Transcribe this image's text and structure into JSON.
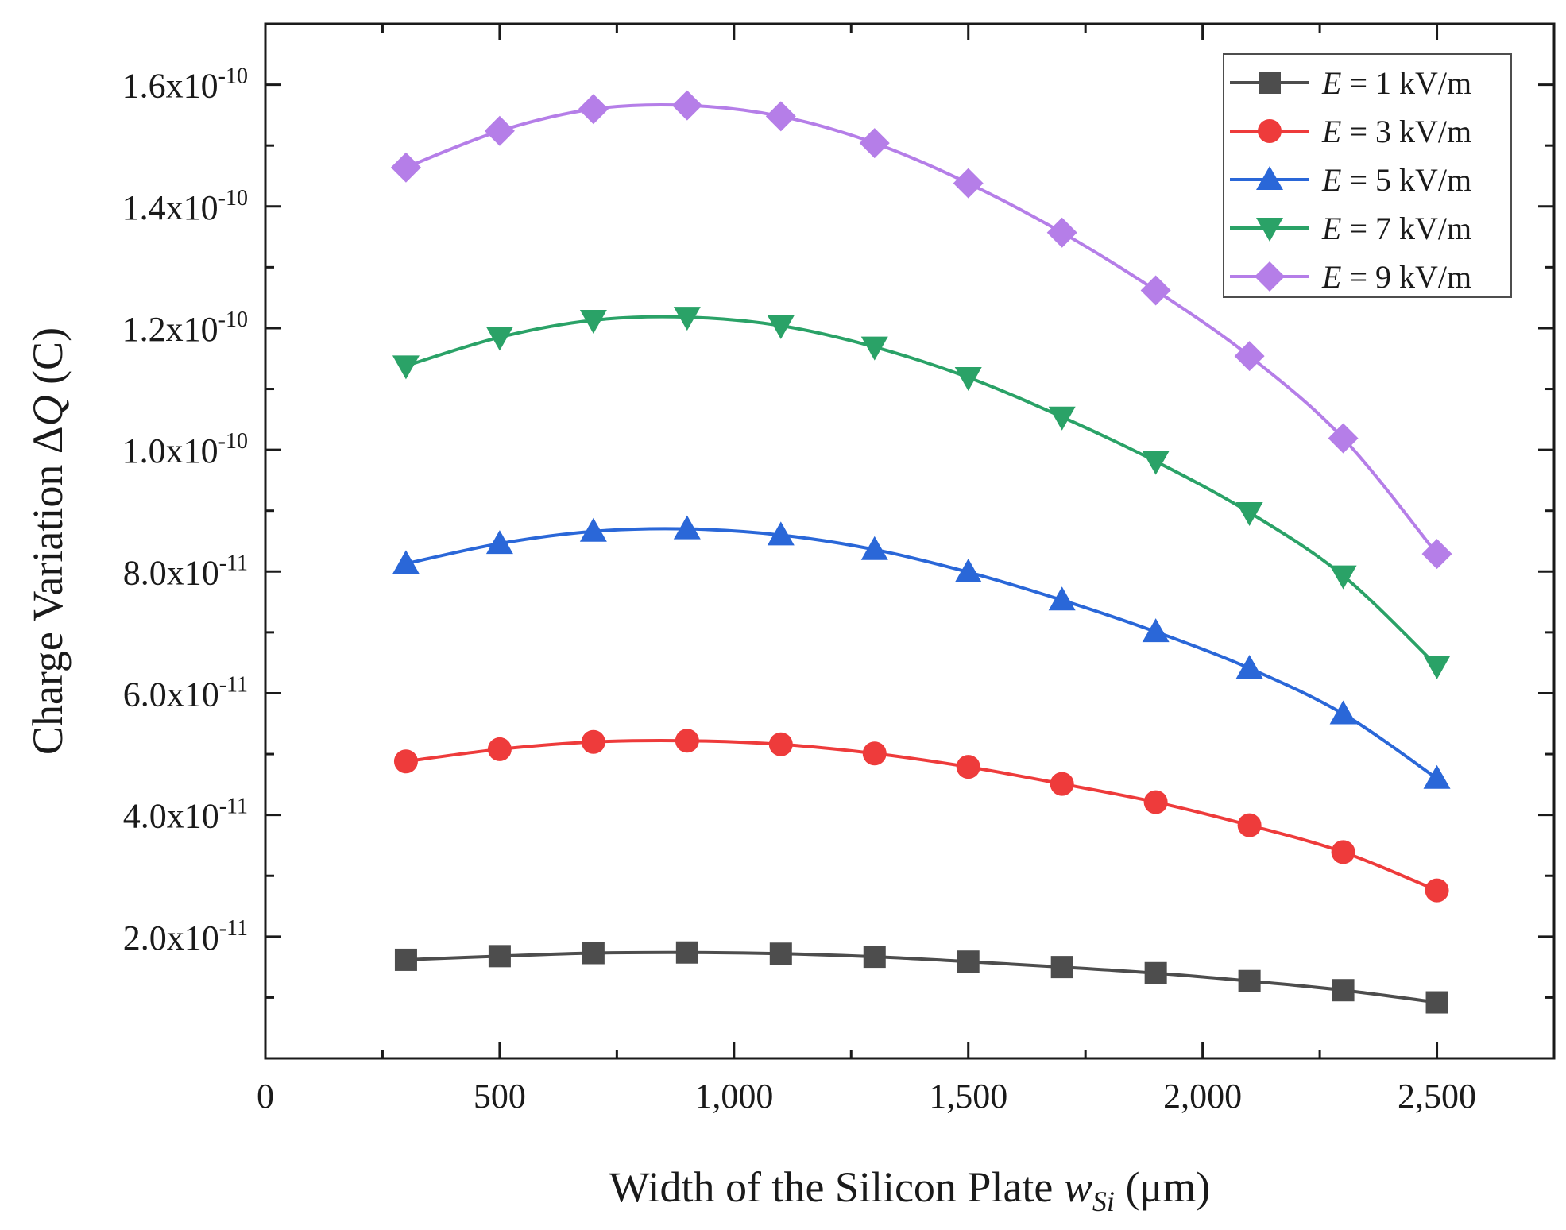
{
  "chart_data": {
    "type": "line",
    "xlabel": {
      "prefix": "Width of the Silicon Plate ",
      "var": "w",
      "sub": "Si",
      "suffix": " (μm)"
    },
    "ylabel": {
      "prefix": "Charge Variation Δ",
      "var": "Q",
      "suffix": " (C)"
    },
    "xlim": [
      0,
      2750
    ],
    "ylim": [
      0,
      1.7e-10
    ],
    "x_ticks": [
      {
        "value": 0,
        "label": "0"
      },
      {
        "value": 500,
        "label": "500"
      },
      {
        "value": 1000,
        "label": "1,000"
      },
      {
        "value": 1500,
        "label": "1,500"
      },
      {
        "value": 2000,
        "label": "2,000"
      },
      {
        "value": 2500,
        "label": "2,500"
      }
    ],
    "y_ticks": [
      {
        "value": 2e-11,
        "mantissa": "2.0x10",
        "exp": "-11"
      },
      {
        "value": 4e-11,
        "mantissa": "4.0x10",
        "exp": "-11"
      },
      {
        "value": 6e-11,
        "mantissa": "6.0x10",
        "exp": "-11"
      },
      {
        "value": 8e-11,
        "mantissa": "8.0x10",
        "exp": "-11"
      },
      {
        "value": 1e-10,
        "mantissa": "1.0x10",
        "exp": "-10"
      },
      {
        "value": 1.2e-10,
        "mantissa": "1.2x10",
        "exp": "-10"
      },
      {
        "value": 1.4e-10,
        "mantissa": "1.4x10",
        "exp": "-10"
      },
      {
        "value": 1.6e-10,
        "mantissa": "1.6x10",
        "exp": "-10"
      }
    ],
    "grid": false,
    "legend_position": "top-right",
    "x": [
      300,
      500,
      700,
      900,
      1100,
      1300,
      1500,
      1700,
      1900,
      2100,
      2300,
      2500
    ],
    "series": [
      {
        "name": "E = 1 kV/m",
        "var": "E",
        "rest": " = 1 kV/m",
        "color": "#4d4d4d",
        "marker": "square",
        "values": [
          1.62e-11,
          1.68e-11,
          1.73e-11,
          1.74e-11,
          1.72e-11,
          1.67e-11,
          1.59e-11,
          1.5e-11,
          1.4e-11,
          1.27e-11,
          1.12e-11,
          9.2e-12
        ]
      },
      {
        "name": "E = 3 kV/m",
        "var": "E",
        "rest": " = 3 kV/m",
        "color": "#ee3b3b",
        "marker": "circle",
        "values": [
          4.88e-11,
          5.08e-11,
          5.2e-11,
          5.22e-11,
          5.16e-11,
          5.01e-11,
          4.79e-11,
          4.51e-11,
          4.21e-11,
          3.83e-11,
          3.39e-11,
          2.76e-11
        ]
      },
      {
        "name": "E = 5 kV/m",
        "var": "E",
        "rest": " = 5 kV/m",
        "color": "#2a67d8",
        "marker": "triangle-up",
        "values": [
          8.13e-11,
          8.46e-11,
          8.66e-11,
          8.7e-11,
          8.6e-11,
          8.36e-11,
          7.99e-11,
          7.53e-11,
          7.01e-11,
          6.41e-11,
          5.66e-11,
          4.6e-11
        ]
      },
      {
        "name": "E = 7 kV/m",
        "var": "E",
        "rest": " = 7 kV/m",
        "color": "#2aa267",
        "marker": "triangle-down",
        "values": [
          1.138e-10,
          1.185e-10,
          1.213e-10,
          1.218e-10,
          1.204e-10,
          1.169e-10,
          1.119e-10,
          1.054e-10,
          9.81e-11,
          8.97e-11,
          7.93e-11,
          6.45e-11
        ]
      },
      {
        "name": "E = 9 kV/m",
        "var": "E",
        "rest": " = 9 kV/m",
        "color": "#b57ee8",
        "marker": "diamond",
        "values": [
          1.464e-10,
          1.524e-10,
          1.56e-10,
          1.566e-10,
          1.548e-10,
          1.504e-10,
          1.438e-10,
          1.357e-10,
          1.262e-10,
          1.154e-10,
          1.019e-10,
          8.29e-11
        ]
      }
    ]
  }
}
